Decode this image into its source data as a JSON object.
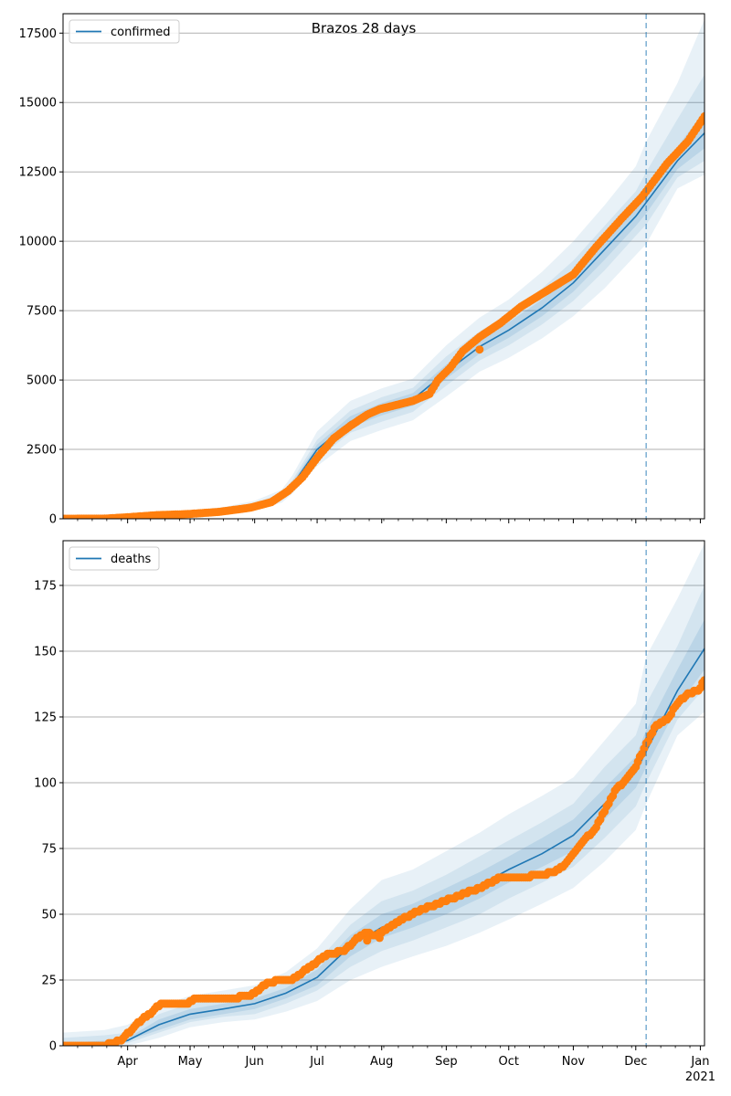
{
  "figure": {
    "title": "Brazos 28 days"
  },
  "x_axis": {
    "tick_labels": [
      "Apr",
      "May",
      "Jun",
      "Jul",
      "Aug",
      "Sep",
      "Oct",
      "Nov",
      "Dec",
      "Jan"
    ],
    "tick_days": [
      31,
      61,
      92,
      122,
      153,
      184,
      214,
      245,
      275,
      306
    ],
    "year_label": "2021",
    "start_date": "2020-03-01",
    "range_days": [
      0,
      308
    ]
  },
  "chart_data": [
    {
      "type": "line",
      "legend": "confirmed",
      "legend_placement": "top-left",
      "ylim": [
        0,
        18200
      ],
      "yticks": [
        0,
        2500,
        5000,
        7500,
        10000,
        12500,
        15000,
        17500
      ],
      "grid": "y",
      "forecast_start_day": 280,
      "colors": {
        "line": "#1f77b4",
        "points": "#ff7f0e",
        "band": "#1f77b4"
      },
      "model": {
        "days": [
          0,
          15,
          31,
          46,
          61,
          77,
          92,
          105,
          110,
          122,
          138,
          153,
          168,
          184,
          200,
          214,
          230,
          245,
          260,
          275,
          280,
          295,
          308
        ],
        "median": [
          0,
          0,
          40,
          110,
          180,
          270,
          450,
          800,
          1200,
          2500,
          3500,
          3950,
          4300,
          5300,
          6200,
          6800,
          7600,
          8500,
          9700,
          10900,
          11400,
          12900,
          13900
        ],
        "bands": [
          {
            "level": 0.95,
            "low": [
              0,
              0,
              20,
              60,
              110,
              170,
              310,
              580,
              900,
              1900,
              2800,
              3200,
              3550,
              4400,
              5300,
              5800,
              6500,
              7300,
              8300,
              9500,
              9900,
              11900,
              12400
            ],
            "high": [
              0,
              80,
              100,
              210,
              300,
              420,
              650,
              1050,
              1550,
              3150,
              4250,
              4700,
              5050,
              6250,
              7250,
              7900,
              8900,
              10000,
              11300,
              12700,
              13600,
              15700,
              18000
            ]
          },
          {
            "level": 0.8,
            "low": [
              0,
              0,
              28,
              80,
              140,
              210,
              370,
              680,
              1050,
              2150,
              3100,
              3500,
              3850,
              4800,
              5700,
              6250,
              7000,
              7850,
              8950,
              10200,
              10600,
              12300,
              12900
            ],
            "high": [
              0,
              50,
              70,
              170,
              250,
              360,
              560,
              930,
              1380,
              2850,
              3900,
              4380,
              4720,
              5850,
              6750,
              7400,
              8300,
              9300,
              10550,
              11800,
              12500,
              14400,
              16000
            ]
          },
          {
            "level": 0.5,
            "low": [
              0,
              0,
              34,
              95,
              160,
              240,
              410,
              740,
              1120,
              2330,
              3300,
              3730,
              4070,
              5050,
              5950,
              6520,
              7300,
              8180,
              9330,
              10550,
              11000,
              12600,
              13350
            ],
            "high": [
              0,
              20,
              50,
              130,
              205,
              310,
              500,
              860,
              1290,
              2680,
              3700,
              4170,
              4530,
              5560,
              6450,
              7080,
              7900,
              8820,
              10070,
              11250,
              11850,
              13400,
              14700
            ]
          }
        ]
      },
      "observed": {
        "days": [
          0,
          20,
          30,
          45,
          60,
          75,
          90,
          100,
          108,
          115,
          122,
          130,
          138,
          146,
          152,
          160,
          168,
          176,
          180,
          186,
          192,
          200,
          210,
          220,
          232,
          245,
          256,
          268,
          278,
          290,
          300,
          308
        ],
        "values": [
          0,
          5,
          50,
          130,
          170,
          250,
          400,
          600,
          1000,
          1500,
          2200,
          2900,
          3350,
          3750,
          3950,
          4100,
          4250,
          4500,
          5000,
          5450,
          6050,
          6550,
          7050,
          7650,
          8200,
          8800,
          9800,
          10800,
          11600,
          12800,
          13600,
          14500
        ],
        "outliers": [
          {
            "day": 200,
            "value": 6100
          }
        ]
      }
    },
    {
      "type": "line",
      "legend": "deaths",
      "legend_placement": "top-left",
      "ylim": [
        0,
        192
      ],
      "yticks": [
        0,
        25,
        50,
        75,
        100,
        125,
        150,
        175
      ],
      "grid": "y",
      "forecast_start_day": 280,
      "colors": {
        "line": "#1f77b4",
        "points": "#ff7f0e",
        "band": "#1f77b4"
      },
      "model": {
        "days": [
          0,
          20,
          31,
          46,
          61,
          77,
          92,
          107,
          122,
          138,
          153,
          168,
          184,
          200,
          214,
          230,
          245,
          260,
          275,
          280,
          295,
          308
        ],
        "median": [
          0,
          0,
          2,
          8,
          12,
          14,
          16,
          20,
          26,
          38,
          45,
          49,
          55,
          61,
          67,
          73,
          80,
          92,
          104,
          112,
          135,
          151
        ],
        "bands": [
          {
            "level": 0.95,
            "low": [
              0,
              0,
              0,
              3,
              7,
              9,
              10,
              13,
              17,
              25,
              30,
              34,
              38,
              43,
              48,
              54,
              60,
              70,
              82,
              92,
              118,
              127
            ],
            "high": [
              5,
              6,
              8,
              15,
              19,
              21,
              23,
              28,
              37,
              52,
              63,
              67,
              74,
              81,
              88,
              95,
              102,
              116,
              130,
              148,
              170,
              191
            ]
          },
          {
            "level": 0.8,
            "low": [
              0,
              0,
              1,
              5,
              9,
              11,
              12,
              16,
              21,
              30,
              36,
              40,
              45,
              50,
              56,
              62,
              68,
              79,
              91,
              100,
              124,
              136
            ],
            "high": [
              3,
              4,
              5,
              12,
              16,
              18,
              20,
              24,
              32,
              46,
              55,
              59,
              65,
              72,
              78,
              85,
              92,
              106,
              118,
              130,
              152,
              175
            ]
          },
          {
            "level": 0.5,
            "low": [
              0,
              0,
              2,
              6,
              10,
              12,
              14,
              18,
              23,
              34,
              41,
              45,
              50,
              56,
              62,
              68,
              74,
              86,
              98,
              106,
              129,
              143
            ],
            "high": [
              1,
              2,
              3,
              10,
              14,
              16,
              18,
              22,
              29,
              42,
              50,
              54,
              60,
              66,
              72,
              79,
              86,
              98,
              110,
              120,
              143,
              162
            ]
          }
        ]
      },
      "observed": {
        "days": [
          0,
          20,
          28,
          35,
          43,
          47,
          60,
          63,
          70,
          80,
          90,
          95,
          98,
          105,
          110,
          115,
          122,
          128,
          135,
          140,
          145,
          150,
          155,
          160,
          170,
          180,
          190,
          200,
          210,
          220,
          230,
          235,
          240,
          245,
          250,
          255,
          260,
          265,
          270,
          275,
          280,
          285,
          290,
          295,
          300,
          305,
          308
        ],
        "values": [
          0,
          0,
          2,
          8,
          13,
          16,
          16,
          18,
          18,
          18,
          19,
          22,
          24,
          25,
          25,
          28,
          32,
          35,
          36,
          40,
          43,
          42,
          44,
          47,
          51,
          54,
          57,
          60,
          64,
          64,
          65,
          66,
          68,
          73,
          78,
          82,
          89,
          97,
          101,
          106,
          115,
          122,
          124,
          130,
          134,
          135,
          139
        ],
        "outliers": [
          {
            "day": 146,
            "value": 40
          },
          {
            "day": 152,
            "value": 41
          }
        ]
      }
    }
  ]
}
